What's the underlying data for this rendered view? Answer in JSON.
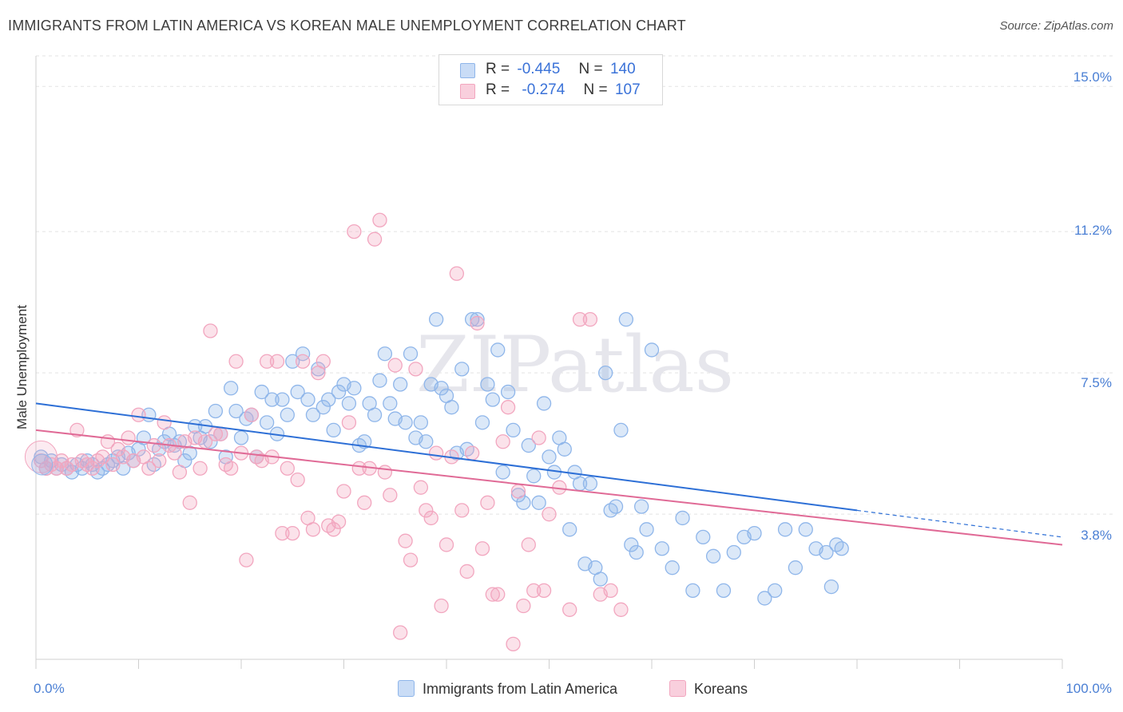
{
  "title": "IMMIGRANTS FROM LATIN AMERICA VS KOREAN MALE UNEMPLOYMENT CORRELATION CHART",
  "source": "Source: ZipAtlas.com",
  "watermark": "ZIPatlas",
  "legend_top": [
    {
      "r_label": "R =",
      "r_value": "-0.445",
      "n_label": "N =",
      "n_value": "140"
    },
    {
      "r_label": "R =",
      "r_value": "-0.274",
      "n_label": "N =",
      "n_value": "107"
    }
  ],
  "chart_data": {
    "type": "scatter",
    "title": "IMMIGRANTS FROM LATIN AMERICA VS KOREAN MALE UNEMPLOYMENT CORRELATION CHART",
    "xlabel": "",
    "ylabel": "Male Unemployment",
    "xlim": [
      0,
      100
    ],
    "ylim": [
      0,
      15.8
    ],
    "x_tick_labels": [
      "0.0%",
      "100.0%"
    ],
    "y_ticks": [
      3.8,
      7.5,
      11.2,
      15.0
    ],
    "y_tick_labels": [
      "3.8%",
      "7.5%",
      "11.2%",
      "15.0%"
    ],
    "grid": true,
    "legend_position": "bottom-center",
    "series": [
      {
        "name": "Immigrants from Latin America",
        "color": "#8fb6ea",
        "line_color": "#2d6fd6",
        "R": -0.445,
        "N": 140,
        "trend": {
          "x0": 0,
          "y0": 6.7,
          "x1": 80,
          "y1": 3.9,
          "dashed_to_x": 100,
          "dashed_to_y": 3.2
        },
        "points": [
          [
            0.5,
            5.3
          ],
          [
            1,
            5.0
          ],
          [
            1.5,
            5.2
          ],
          [
            2,
            5.0
          ],
          [
            2.5,
            5.1
          ],
          [
            3,
            5.0
          ],
          [
            3.5,
            4.9
          ],
          [
            4,
            5.1
          ],
          [
            4.5,
            5.0
          ],
          [
            5,
            5.2
          ],
          [
            5.5,
            5.1
          ],
          [
            6,
            4.9
          ],
          [
            6.5,
            5.0
          ],
          [
            7,
            5.1
          ],
          [
            7.5,
            5.2
          ],
          [
            8,
            5.3
          ],
          [
            8.5,
            5.0
          ],
          [
            9,
            5.4
          ],
          [
            9.5,
            5.2
          ],
          [
            10,
            5.5
          ],
          [
            10.5,
            5.8
          ],
          [
            11,
            6.4
          ],
          [
            11.5,
            5.1
          ],
          [
            12,
            5.5
          ],
          [
            12.5,
            5.7
          ],
          [
            13,
            5.9
          ],
          [
            13.5,
            5.6
          ],
          [
            14,
            5.7
          ],
          [
            14.5,
            5.2
          ],
          [
            15,
            5.4
          ],
          [
            15.5,
            6.1
          ],
          [
            16,
            5.8
          ],
          [
            16.5,
            6.1
          ],
          [
            17,
            5.7
          ],
          [
            17.5,
            6.5
          ],
          [
            18,
            5.9
          ],
          [
            18.5,
            5.3
          ],
          [
            19,
            7.1
          ],
          [
            19.5,
            6.5
          ],
          [
            20,
            5.8
          ],
          [
            20.5,
            6.3
          ],
          [
            21,
            6.4
          ],
          [
            21.5,
            5.3
          ],
          [
            22,
            7.0
          ],
          [
            22.5,
            6.2
          ],
          [
            23,
            6.8
          ],
          [
            23.5,
            5.9
          ],
          [
            24,
            6.8
          ],
          [
            24.5,
            6.4
          ],
          [
            25,
            7.8
          ],
          [
            25.5,
            7.0
          ],
          [
            26,
            8.0
          ],
          [
            26.5,
            6.8
          ],
          [
            27,
            6.4
          ],
          [
            27.5,
            7.6
          ],
          [
            28,
            6.6
          ],
          [
            28.5,
            6.8
          ],
          [
            29,
            6.0
          ],
          [
            29.5,
            7.0
          ],
          [
            30,
            7.2
          ],
          [
            30.5,
            6.7
          ],
          [
            31,
            7.1
          ],
          [
            31.5,
            5.6
          ],
          [
            32,
            5.7
          ],
          [
            32.5,
            6.7
          ],
          [
            33,
            6.4
          ],
          [
            33.5,
            7.3
          ],
          [
            34,
            8.0
          ],
          [
            34.5,
            6.7
          ],
          [
            35,
            6.3
          ],
          [
            35.5,
            7.2
          ],
          [
            36,
            6.2
          ],
          [
            36.5,
            8.0
          ],
          [
            37,
            5.8
          ],
          [
            37.5,
            6.2
          ],
          [
            38,
            5.7
          ],
          [
            38.5,
            7.2
          ],
          [
            39,
            8.9
          ],
          [
            39.5,
            7.1
          ],
          [
            40,
            6.9
          ],
          [
            40.5,
            6.6
          ],
          [
            41,
            5.4
          ],
          [
            41.5,
            7.6
          ],
          [
            42,
            5.5
          ],
          [
            42.5,
            8.9
          ],
          [
            43,
            8.9
          ],
          [
            43.5,
            6.2
          ],
          [
            44,
            7.2
          ],
          [
            44.5,
            6.8
          ],
          [
            45,
            8.1
          ],
          [
            45.5,
            4.9
          ],
          [
            46,
            7.0
          ],
          [
            46.5,
            6.0
          ],
          [
            47,
            4.3
          ],
          [
            47.5,
            4.1
          ],
          [
            48,
            5.6
          ],
          [
            48.5,
            4.8
          ],
          [
            49,
            4.1
          ],
          [
            49.5,
            6.7
          ],
          [
            50,
            5.3
          ],
          [
            50.5,
            4.9
          ],
          [
            51,
            5.8
          ],
          [
            51.5,
            5.5
          ],
          [
            52,
            3.4
          ],
          [
            52.5,
            4.9
          ],
          [
            53,
            4.6
          ],
          [
            53.5,
            2.5
          ],
          [
            54,
            4.6
          ],
          [
            54.5,
            2.4
          ],
          [
            55,
            2.1
          ],
          [
            55.5,
            7.5
          ],
          [
            56,
            3.9
          ],
          [
            56.5,
            4.0
          ],
          [
            57,
            6.0
          ],
          [
            57.5,
            8.9
          ],
          [
            58,
            3.0
          ],
          [
            58.5,
            2.8
          ],
          [
            59,
            4.0
          ],
          [
            59.5,
            3.4
          ],
          [
            60,
            8.1
          ],
          [
            61,
            2.9
          ],
          [
            62,
            2.4
          ],
          [
            63,
            3.7
          ],
          [
            64,
            1.8
          ],
          [
            65,
            3.2
          ],
          [
            66,
            2.7
          ],
          [
            67,
            1.8
          ],
          [
            68,
            2.8
          ],
          [
            69,
            3.2
          ],
          [
            70,
            3.3
          ],
          [
            71,
            1.6
          ],
          [
            72,
            1.8
          ],
          [
            73,
            3.4
          ],
          [
            74,
            2.4
          ],
          [
            75,
            3.4
          ],
          [
            76,
            2.9
          ],
          [
            77,
            2.8
          ],
          [
            77.5,
            1.9
          ],
          [
            78,
            3.0
          ],
          [
            78.5,
            2.9
          ]
        ]
      },
      {
        "name": "Koreans",
        "color": "#f2a6bf",
        "line_color": "#e06a96",
        "R": -0.274,
        "N": 107,
        "trend": {
          "x0": 0,
          "y0": 6.0,
          "x1": 100,
          "y1": 3.0
        },
        "points": [
          [
            0.5,
            5.2
          ],
          [
            1,
            5.0
          ],
          [
            1.5,
            5.1
          ],
          [
            2,
            5.0
          ],
          [
            2.5,
            5.2
          ],
          [
            3,
            5.0
          ],
          [
            3.5,
            5.1
          ],
          [
            4,
            6.0
          ],
          [
            4.5,
            5.2
          ],
          [
            5,
            5.1
          ],
          [
            5.5,
            5.0
          ],
          [
            6,
            5.2
          ],
          [
            6.5,
            5.3
          ],
          [
            7,
            5.7
          ],
          [
            7.5,
            5.1
          ],
          [
            8,
            5.5
          ],
          [
            8.5,
            5.3
          ],
          [
            9,
            5.8
          ],
          [
            9.5,
            5.2
          ],
          [
            10,
            6.4
          ],
          [
            10.5,
            5.3
          ],
          [
            11,
            5.0
          ],
          [
            11.5,
            5.6
          ],
          [
            12,
            5.2
          ],
          [
            12.5,
            6.2
          ],
          [
            13,
            5.6
          ],
          [
            13.5,
            5.4
          ],
          [
            14,
            4.9
          ],
          [
            14.5,
            5.7
          ],
          [
            15,
            4.1
          ],
          [
            15.5,
            5.8
          ],
          [
            16,
            5.0
          ],
          [
            16.5,
            5.7
          ],
          [
            17,
            8.6
          ],
          [
            17.5,
            5.9
          ],
          [
            18,
            5.9
          ],
          [
            18.5,
            5.1
          ],
          [
            19,
            5.0
          ],
          [
            19.5,
            7.8
          ],
          [
            20,
            5.4
          ],
          [
            20.5,
            2.6
          ],
          [
            21,
            6.4
          ],
          [
            21.5,
            5.3
          ],
          [
            22,
            5.2
          ],
          [
            22.5,
            7.8
          ],
          [
            23,
            5.3
          ],
          [
            23.5,
            7.8
          ],
          [
            24,
            3.3
          ],
          [
            24.5,
            5.0
          ],
          [
            25,
            3.3
          ],
          [
            25.5,
            4.7
          ],
          [
            26,
            7.8
          ],
          [
            26.5,
            3.7
          ],
          [
            27,
            3.4
          ],
          [
            27.5,
            7.5
          ],
          [
            28,
            7.8
          ],
          [
            28.5,
            3.5
          ],
          [
            29,
            3.4
          ],
          [
            29.5,
            3.6
          ],
          [
            30,
            4.4
          ],
          [
            30.5,
            6.2
          ],
          [
            31,
            11.2
          ],
          [
            31.5,
            5.0
          ],
          [
            32,
            4.1
          ],
          [
            32.5,
            5.0
          ],
          [
            33,
            11.0
          ],
          [
            33.5,
            11.5
          ],
          [
            34,
            4.9
          ],
          [
            34.5,
            4.3
          ],
          [
            35,
            7.7
          ],
          [
            35.5,
            0.7
          ],
          [
            36,
            3.1
          ],
          [
            36.5,
            2.6
          ],
          [
            37,
            7.6
          ],
          [
            37.5,
            4.5
          ],
          [
            38,
            3.9
          ],
          [
            38.5,
            3.7
          ],
          [
            39,
            5.4
          ],
          [
            39.5,
            1.4
          ],
          [
            40,
            3.0
          ],
          [
            40.5,
            5.3
          ],
          [
            41,
            10.1
          ],
          [
            41.5,
            3.9
          ],
          [
            42,
            2.3
          ],
          [
            42.5,
            5.4
          ],
          [
            43,
            8.8
          ],
          [
            43.5,
            2.9
          ],
          [
            44,
            4.1
          ],
          [
            44.5,
            1.7
          ],
          [
            45,
            1.7
          ],
          [
            45.5,
            5.7
          ],
          [
            46,
            6.6
          ],
          [
            46.5,
            0.4
          ],
          [
            47,
            4.4
          ],
          [
            47.5,
            1.4
          ],
          [
            48,
            3.0
          ],
          [
            48.5,
            1.8
          ],
          [
            49,
            5.8
          ],
          [
            49.5,
            1.8
          ],
          [
            50,
            3.8
          ],
          [
            51,
            4.5
          ],
          [
            52,
            1.3
          ],
          [
            53,
            8.9
          ],
          [
            54,
            8.9
          ],
          [
            55,
            1.7
          ],
          [
            56,
            1.8
          ],
          [
            57,
            1.3
          ]
        ]
      }
    ]
  },
  "legend_bottom": [
    {
      "label": "Immigrants from Latin America"
    },
    {
      "label": "Koreans"
    }
  ]
}
